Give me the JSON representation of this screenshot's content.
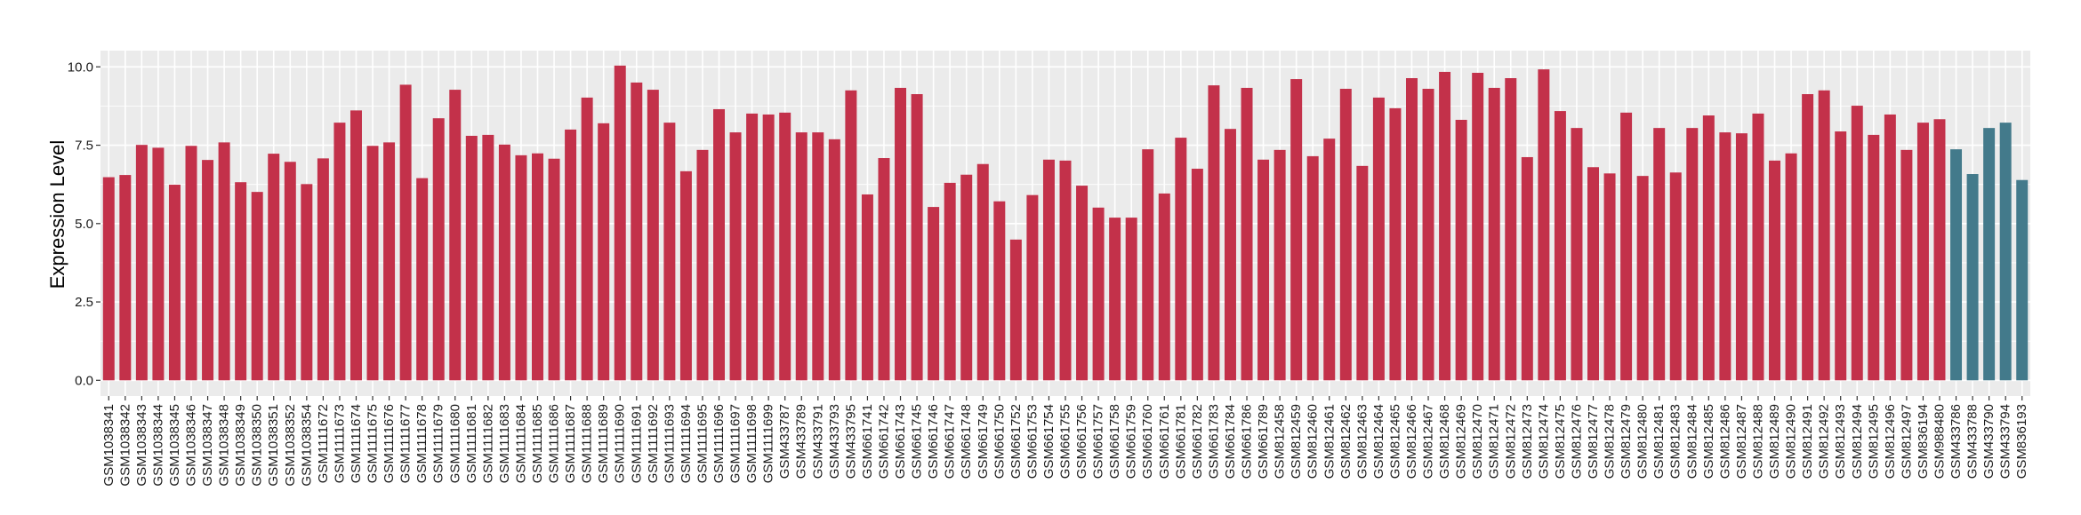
{
  "chart_data": {
    "type": "bar",
    "title": "",
    "xlabel": "",
    "ylabel": "Expression Level",
    "ylim": [
      -0.5,
      10.5
    ],
    "yticks": [
      0.0,
      2.5,
      5.0,
      7.5,
      10.0
    ],
    "ytick_labels": [
      "0.0",
      "2.5",
      "5.0",
      "7.5",
      "10.0"
    ],
    "grid": true,
    "legend": "none",
    "colors": {
      "group_a": "#C3314A",
      "group_b": "#437A8B",
      "panel": "#EBEBEB",
      "grid": "#FFFFFF"
    },
    "categories": [
      "GSM1038341",
      "GSM1038342",
      "GSM1038343",
      "GSM1038344",
      "GSM1038345",
      "GSM1038346",
      "GSM1038347",
      "GSM1038348",
      "GSM1038349",
      "GSM1038350",
      "GSM1038351",
      "GSM1038352",
      "GSM1038354",
      "GSM1111672",
      "GSM1111673",
      "GSM1111674",
      "GSM1111675",
      "GSM1111676",
      "GSM1111677",
      "GSM1111678",
      "GSM1111679",
      "GSM1111680",
      "GSM1111681",
      "GSM1111682",
      "GSM1111683",
      "GSM1111684",
      "GSM1111685",
      "GSM1111686",
      "GSM1111687",
      "GSM1111688",
      "GSM1111689",
      "GSM1111690",
      "GSM1111691",
      "GSM1111692",
      "GSM1111693",
      "GSM1111694",
      "GSM1111695",
      "GSM1111696",
      "GSM1111697",
      "GSM1111698",
      "GSM1111699",
      "GSM433787",
      "GSM433789",
      "GSM433791",
      "GSM433793",
      "GSM433795",
      "GSM661741",
      "GSM661742",
      "GSM661743",
      "GSM661745",
      "GSM661746",
      "GSM661747",
      "GSM661748",
      "GSM661749",
      "GSM661750",
      "GSM661752",
      "GSM661753",
      "GSM661754",
      "GSM661755",
      "GSM661756",
      "GSM661757",
      "GSM661758",
      "GSM661759",
      "GSM661760",
      "GSM661761",
      "GSM661781",
      "GSM661782",
      "GSM661783",
      "GSM661784",
      "GSM661786",
      "GSM661789",
      "GSM812458",
      "GSM812459",
      "GSM812460",
      "GSM812461",
      "GSM812462",
      "GSM812463",
      "GSM812464",
      "GSM812465",
      "GSM812466",
      "GSM812467",
      "GSM812468",
      "GSM812469",
      "GSM812470",
      "GSM812471",
      "GSM812472",
      "GSM812473",
      "GSM812474",
      "GSM812475",
      "GSM812476",
      "GSM812477",
      "GSM812478",
      "GSM812479",
      "GSM812480",
      "GSM812481",
      "GSM812483",
      "GSM812484",
      "GSM812485",
      "GSM812486",
      "GSM812487",
      "GSM812488",
      "GSM812489",
      "GSM812490",
      "GSM812491",
      "GSM812492",
      "GSM812493",
      "GSM812494",
      "GSM812495",
      "GSM812496",
      "GSM812497",
      "GSM836194",
      "GSM988480",
      "GSM433786",
      "GSM433788",
      "GSM433790",
      "GSM433794",
      "GSM836193"
    ],
    "values": [
      6.48,
      6.55,
      7.51,
      7.42,
      6.24,
      7.48,
      7.03,
      7.59,
      6.32,
      6.01,
      7.23,
      6.97,
      6.26,
      7.08,
      8.22,
      8.61,
      7.48,
      7.59,
      9.43,
      6.45,
      8.36,
      9.27,
      7.8,
      7.83,
      7.52,
      7.18,
      7.24,
      7.07,
      8.0,
      9.02,
      8.2,
      10.04,
      9.5,
      9.27,
      8.22,
      6.67,
      7.35,
      8.65,
      7.91,
      8.51,
      8.48,
      8.54,
      7.91,
      7.91,
      7.69,
      9.25,
      5.93,
      7.09,
      9.33,
      9.13,
      5.53,
      6.3,
      6.56,
      6.9,
      5.71,
      4.49,
      5.91,
      7.04,
      7.01,
      6.21,
      5.51,
      5.19,
      5.19,
      7.37,
      5.96,
      7.74,
      6.75,
      9.41,
      8.02,
      9.33,
      7.04,
      7.35,
      9.61,
      7.15,
      7.71,
      9.3,
      6.84,
      9.02,
      8.68,
      9.64,
      9.3,
      9.84,
      8.31,
      9.81,
      9.33,
      9.64,
      7.12,
      9.92,
      8.59,
      8.05,
      6.8,
      6.6,
      8.54,
      6.52,
      8.05,
      6.63,
      8.05,
      8.45,
      7.91,
      7.88,
      8.51,
      7.01,
      7.24,
      9.13,
      9.25,
      7.94,
      8.76,
      7.83,
      8.48,
      7.35,
      8.22,
      8.33,
      7.37,
      6.58,
      8.05,
      8.22,
      6.39
    ],
    "groups": [
      "a",
      "a",
      "a",
      "a",
      "a",
      "a",
      "a",
      "a",
      "a",
      "a",
      "a",
      "a",
      "a",
      "a",
      "a",
      "a",
      "a",
      "a",
      "a",
      "a",
      "a",
      "a",
      "a",
      "a",
      "a",
      "a",
      "a",
      "a",
      "a",
      "a",
      "a",
      "a",
      "a",
      "a",
      "a",
      "a",
      "a",
      "a",
      "a",
      "a",
      "a",
      "a",
      "a",
      "a",
      "a",
      "a",
      "a",
      "a",
      "a",
      "a",
      "a",
      "a",
      "a",
      "a",
      "a",
      "a",
      "a",
      "a",
      "a",
      "a",
      "a",
      "a",
      "a",
      "a",
      "a",
      "a",
      "a",
      "a",
      "a",
      "a",
      "a",
      "a",
      "a",
      "a",
      "a",
      "a",
      "a",
      "a",
      "a",
      "a",
      "a",
      "a",
      "a",
      "a",
      "a",
      "a",
      "a",
      "a",
      "a",
      "a",
      "a",
      "a",
      "a",
      "a",
      "a",
      "a",
      "a",
      "a",
      "a",
      "a",
      "a",
      "a",
      "a",
      "a",
      "a",
      "a",
      "a",
      "a",
      "a",
      "a",
      "a",
      "a",
      "b",
      "b",
      "b",
      "b",
      "b"
    ]
  }
}
